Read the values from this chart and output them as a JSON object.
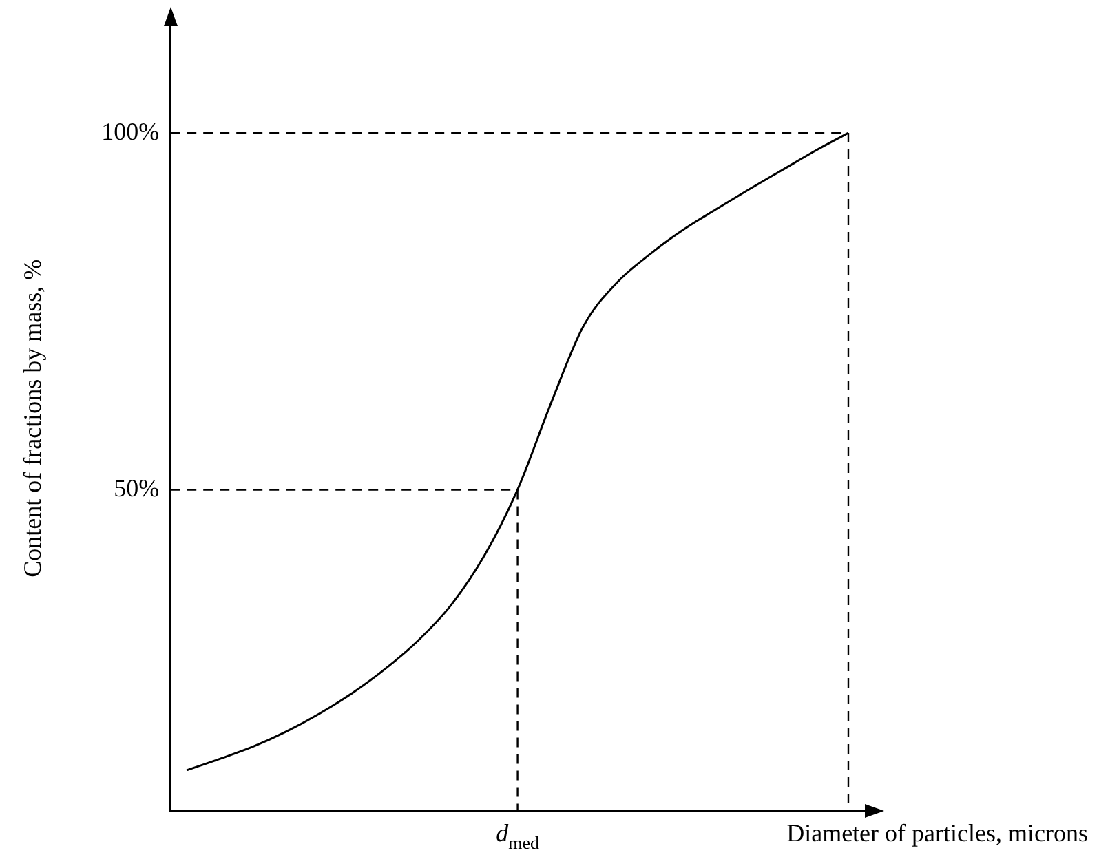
{
  "chart_data": {
    "type": "line",
    "xlabel": "Diameter of particles, microns",
    "ylabel": "Content of fractions by mass, %",
    "categories": [
      null,
      null,
      null,
      null,
      null,
      null,
      null,
      null,
      null,
      null,
      "d$_{med}$",
      null,
      null,
      null,
      null,
      null,
      null,
      null,
      null,
      null,
      null
    ],
    "values": [
      10.7,
      12.3,
      14,
      16.1,
      18.6,
      21.5,
      24.9,
      28.9,
      33.9,
      40.8,
      50,
      62,
      73,
      79,
      83,
      86.4,
      89.3,
      92.1,
      94.8,
      97.5,
      100
    ],
    "color": "#000000",
    "marker": "none",
    "line_style": "solid",
    "ylim": [
      5,
      115
    ],
    "yticks": [
      {
        "value": 50,
        "label": "50%"
      },
      {
        "value": 100,
        "label": "100%"
      }
    ],
    "ref_lines": [
      {
        "axis": "y",
        "value": 50,
        "line_style": "dashed",
        "color": "#000000"
      },
      {
        "axis": "y",
        "value": 100,
        "line_style": "dashed",
        "color": "#000000"
      },
      {
        "axis": "x",
        "value": "d$_{med}$",
        "line_style": "dashed",
        "color": "#000000"
      }
    ],
    "grid": false,
    "legend": false
  }
}
